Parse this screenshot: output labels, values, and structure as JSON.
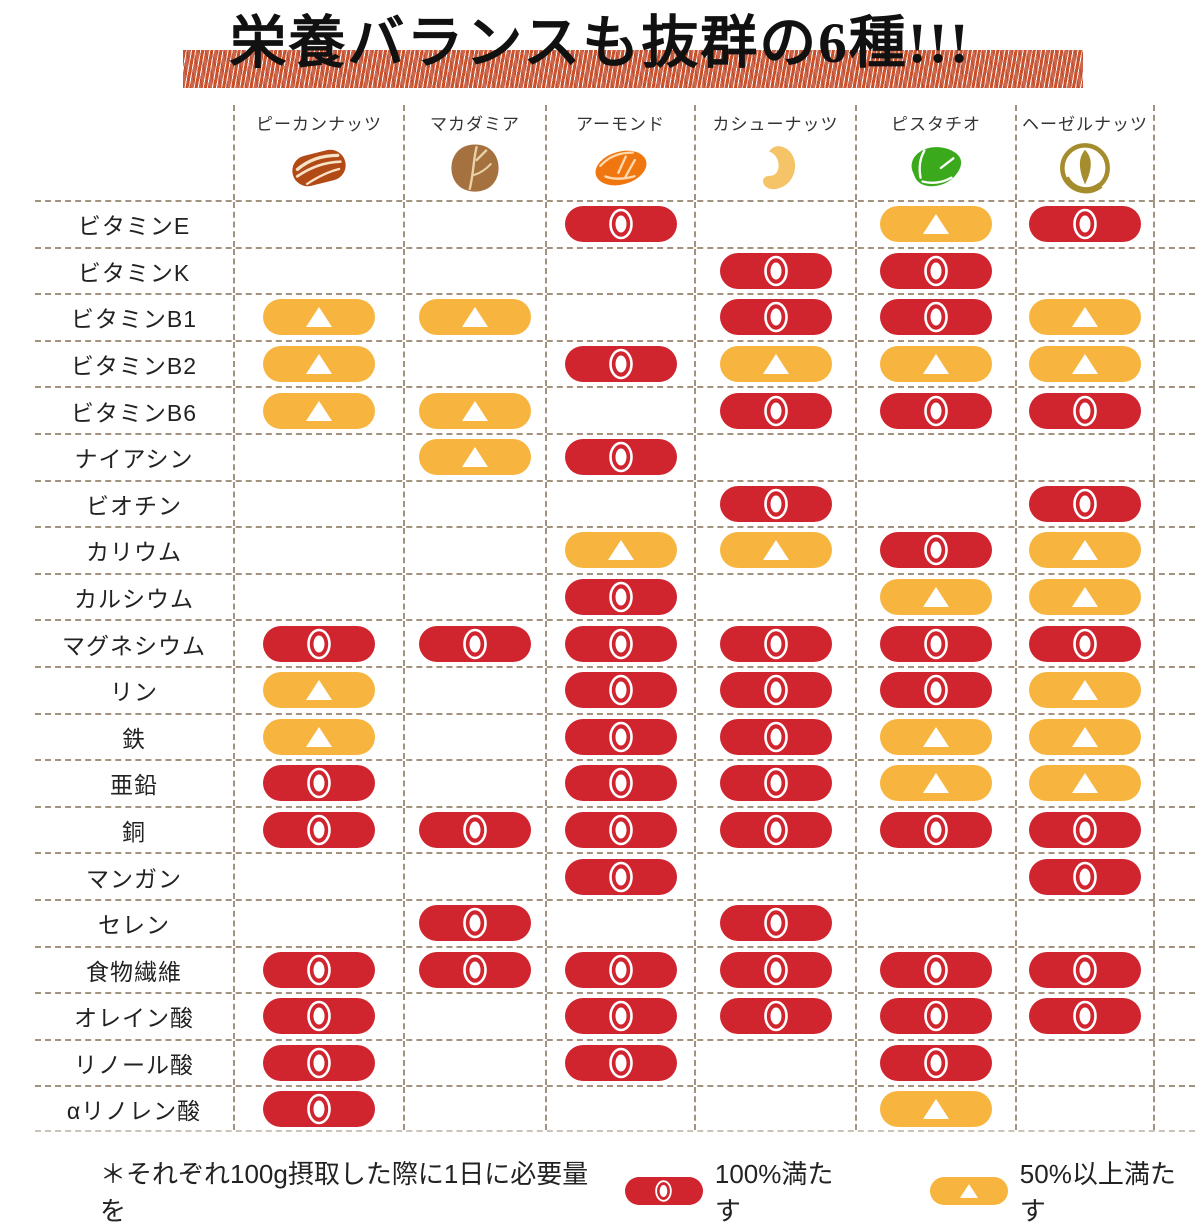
{
  "title": "栄養バランスも抜群の6種!!!",
  "chart_data": {
    "type": "table",
    "title": "栄養バランスも抜群の6種!!!",
    "columns": [
      {
        "label": "ピーカンナッツ",
        "icon": "pecan-icon",
        "color": "#b24a15"
      },
      {
        "label": "マカダミア",
        "icon": "macadamia-icon",
        "color": "#a5713e"
      },
      {
        "label": "アーモンド",
        "icon": "almond-icon",
        "color": "#f0770f"
      },
      {
        "label": "カシューナッツ",
        "icon": "cashew-icon",
        "color": "#f5c469"
      },
      {
        "label": "ピスタチオ",
        "icon": "pistachio-icon",
        "color": "#3aa91c"
      },
      {
        "label": "ヘーゼルナッツ",
        "icon": "hazelnut-icon",
        "color": "#a58d2e"
      }
    ],
    "rows": [
      {
        "label": "ビタミンE",
        "cells": [
          "",
          "",
          "full",
          "",
          "half",
          "full"
        ]
      },
      {
        "label": "ビタミンK",
        "cells": [
          "",
          "",
          "",
          "full",
          "full",
          ""
        ]
      },
      {
        "label": "ビタミンB1",
        "cells": [
          "half",
          "half",
          "",
          "full",
          "full",
          "half"
        ]
      },
      {
        "label": "ビタミンB2",
        "cells": [
          "half",
          "",
          "full",
          "half",
          "half",
          "half"
        ]
      },
      {
        "label": "ビタミンB6",
        "cells": [
          "half",
          "half",
          "",
          "full",
          "full",
          "full"
        ]
      },
      {
        "label": "ナイアシン",
        "cells": [
          "",
          "half",
          "full",
          "",
          "",
          ""
        ]
      },
      {
        "label": "ビオチン",
        "cells": [
          "",
          "",
          "",
          "full",
          "",
          "full"
        ]
      },
      {
        "label": "カリウム",
        "cells": [
          "",
          "",
          "half",
          "half",
          "full",
          "half"
        ]
      },
      {
        "label": "カルシウム",
        "cells": [
          "",
          "",
          "full",
          "",
          "half",
          "half"
        ]
      },
      {
        "label": "マグネシウム",
        "cells": [
          "full",
          "full",
          "full",
          "full",
          "full",
          "full"
        ]
      },
      {
        "label": "リン",
        "cells": [
          "half",
          "",
          "full",
          "full",
          "full",
          "half"
        ]
      },
      {
        "label": "鉄",
        "cells": [
          "half",
          "",
          "full",
          "full",
          "half",
          "half"
        ]
      },
      {
        "label": "亜鉛",
        "cells": [
          "full",
          "",
          "full",
          "full",
          "half",
          "half"
        ]
      },
      {
        "label": "銅",
        "cells": [
          "full",
          "full",
          "full",
          "full",
          "full",
          "full"
        ]
      },
      {
        "label": "マンガン",
        "cells": [
          "",
          "",
          "full",
          "",
          "",
          "full"
        ]
      },
      {
        "label": "セレン",
        "cells": [
          "",
          "full",
          "",
          "full",
          "",
          ""
        ]
      },
      {
        "label": "食物繊維",
        "cells": [
          "full",
          "full",
          "full",
          "full",
          "full",
          "full"
        ]
      },
      {
        "label": "オレイン酸",
        "cells": [
          "full",
          "",
          "full",
          "full",
          "full",
          "full"
        ]
      },
      {
        "label": "リノール酸",
        "cells": [
          "full",
          "",
          "full",
          "",
          "full",
          ""
        ]
      },
      {
        "label": "αリノレン酸",
        "cells": [
          "full",
          "",
          "",
          "",
          "half",
          ""
        ]
      }
    ],
    "marks": {
      "full": {
        "symbol": "◎",
        "color": "#d0242f",
        "meaning": "100%満たす"
      },
      "half": {
        "symbol": "▲",
        "color": "#f7b53f",
        "meaning": "50%以上満たす"
      }
    }
  },
  "legend": {
    "prefix": "＊それぞれ100g摂取した際に1日に必要量を",
    "items": [
      {
        "mark": "full",
        "label": "100%満たす"
      },
      {
        "mark": "half",
        "label": "50%以上満たす"
      }
    ]
  },
  "colors": {
    "full": "#d0242f",
    "half": "#f7b53f",
    "grid": "#a3927d",
    "title_highlight": "#c84a20"
  }
}
